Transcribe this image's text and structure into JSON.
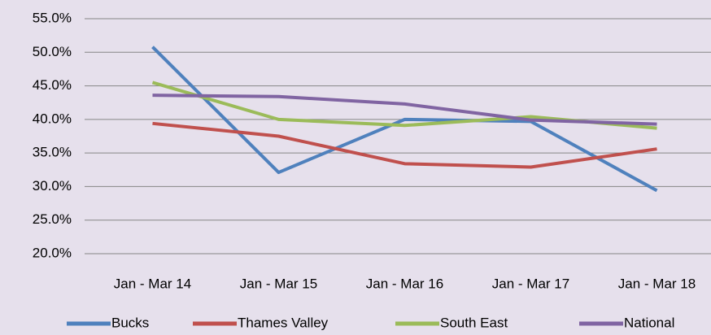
{
  "chart_data": {
    "type": "line",
    "categories": [
      "Jan - Mar 14",
      "Jan - Mar 15",
      "Jan - Mar 16",
      "Jan - Mar 17",
      "Jan - Mar 18"
    ],
    "series": [
      {
        "name": "Bucks",
        "color": "#4f81bd",
        "values": [
          50.8,
          32.1,
          40.0,
          39.7,
          29.4
        ]
      },
      {
        "name": "Thames Valley",
        "color": "#c0504d",
        "values": [
          39.4,
          37.5,
          33.4,
          32.9,
          35.6
        ]
      },
      {
        "name": "South East",
        "color": "#9bbb59",
        "values": [
          45.5,
          40.0,
          39.1,
          40.4,
          38.7
        ]
      },
      {
        "name": "National",
        "color": "#8064a2",
        "values": [
          43.6,
          43.4,
          42.3,
          39.9,
          39.3
        ]
      }
    ],
    "ylim": [
      20,
      55
    ],
    "yticks": [
      {
        "value": 20,
        "label": "20.0%"
      },
      {
        "value": 25,
        "label": "25.0%"
      },
      {
        "value": 30,
        "label": "30.0%"
      },
      {
        "value": 35,
        "label": "35.0%"
      },
      {
        "value": 40,
        "label": "40.0%"
      },
      {
        "value": 45,
        "label": "45.0%"
      },
      {
        "value": 50,
        "label": "50.0%"
      },
      {
        "value": 55,
        "label": "55.0%"
      }
    ],
    "grid": true,
    "legend": "bottom"
  }
}
